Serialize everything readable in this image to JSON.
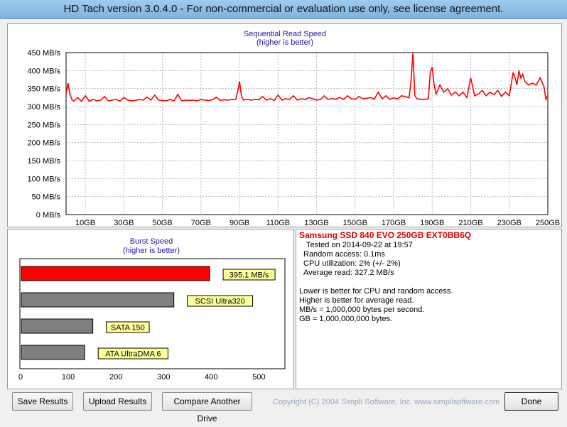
{
  "window": {
    "title": "HD Tach version 3.0.4.0  - For non-commercial or evaluation use only, see license agreement."
  },
  "colors": {
    "accent": "#ff0000",
    "title_blue": "#1a1aa6",
    "bar_gray": "#7f7f7f",
    "label_bg": "#ffff99"
  },
  "chart_data": [
    {
      "type": "line",
      "title": "Sequential Read Speed",
      "subtitle": "(higher is better)",
      "x_unit_labels": [
        "10GB",
        "30GB",
        "50GB",
        "70GB",
        "90GB",
        "110GB",
        "130GB",
        "150GB",
        "170GB",
        "190GB",
        "210GB",
        "230GB",
        "250GB"
      ],
      "y_tick_labels": [
        "450 MB/s",
        "400 MB/s",
        "350 MB/s",
        "300 MB/s",
        "250 MB/s",
        "200 MB/s",
        "150 MB/s",
        "100 MB/s",
        "50 MB/s",
        "0 MB/s"
      ],
      "xlim": [
        0,
        250
      ],
      "ylim": [
        0,
        450
      ],
      "grid": true,
      "series": [
        {
          "x": [
            0,
            1,
            2,
            3,
            4,
            6,
            8,
            10,
            12,
            14,
            16,
            18,
            20,
            22,
            24,
            26,
            28,
            30,
            32,
            34,
            36,
            38,
            40,
            42,
            44,
            46,
            48,
            50,
            52,
            54,
            56,
            58,
            60,
            62,
            64,
            66,
            68,
            70,
            72,
            74,
            76,
            78,
            80,
            82,
            84,
            86,
            88,
            89,
            90,
            91,
            92,
            94,
            96,
            98,
            100,
            102,
            104,
            106,
            108,
            110,
            112,
            114,
            116,
            118,
            120,
            122,
            124,
            126,
            128,
            130,
            132,
            134,
            136,
            138,
            140,
            142,
            144,
            146,
            148,
            150,
            152,
            154,
            156,
            158,
            160,
            162,
            164,
            166,
            168,
            170,
            172,
            174,
            176,
            178,
            179,
            180,
            181,
            182,
            184,
            186,
            188,
            189,
            190,
            191,
            192,
            194,
            196,
            198,
            200,
            202,
            204,
            206,
            208,
            210,
            212,
            214,
            216,
            218,
            220,
            222,
            224,
            226,
            228,
            230,
            232,
            233,
            234,
            235,
            236,
            237,
            238,
            240,
            242,
            244,
            246,
            248,
            249,
            250
          ],
          "values": [
            335,
            365,
            335,
            320,
            315,
            325,
            315,
            330,
            315,
            320,
            316,
            318,
            328,
            316,
            318,
            320,
            315,
            325,
            318,
            316,
            317,
            320,
            318,
            326,
            318,
            332,
            318,
            317,
            316,
            320,
            316,
            334,
            316,
            318,
            317,
            318,
            316,
            320,
            318,
            317,
            319,
            326,
            317,
            319,
            318,
            320,
            320,
            340,
            370,
            330,
            318,
            320,
            318,
            320,
            319,
            328,
            318,
            322,
            317,
            332,
            318,
            322,
            320,
            330,
            318,
            322,
            320,
            325,
            322,
            318,
            320,
            330,
            320,
            322,
            321,
            325,
            320,
            330,
            322,
            320,
            328,
            322,
            323,
            325,
            321,
            340,
            322,
            330,
            320,
            324,
            322,
            330,
            328,
            324,
            370,
            450,
            330,
            322,
            320,
            320,
            322,
            395,
            410,
            360,
            335,
            360,
            340,
            350,
            332,
            340,
            330,
            340,
            325,
            380,
            330,
            335,
            345,
            330,
            340,
            333,
            345,
            328,
            340,
            330,
            395,
            380,
            360,
            400,
            380,
            390,
            370,
            360,
            365,
            360,
            380,
            355,
            320,
            330
          ]
        }
      ]
    },
    {
      "type": "bar",
      "title": "Burst Speed",
      "subtitle": "(higher is better)",
      "categories": [
        "395.1 MB/s",
        "SCSI Ultra320",
        "SATA 150",
        "ATA UltraDMA 6"
      ],
      "values": [
        395.1,
        320,
        150,
        133
      ],
      "x_tick_labels": [
        "0",
        "100",
        "200",
        "300",
        "400",
        "500"
      ],
      "xlim": [
        0,
        550
      ],
      "bar_colors": [
        "#ff0000",
        "#7f7f7f",
        "#7f7f7f",
        "#7f7f7f"
      ]
    }
  ],
  "info": {
    "drive_name": "Samsung SSD 840 EVO 250GB EXT0BB6Q",
    "tested_on": "Tested on 2014-09-22 at 19:57",
    "random_access": "Random access: 0.1ms",
    "cpu_utilization": "CPU utilization: 2% (+/- 2%)",
    "average_read": "Average read: 327.2 MB/s",
    "notes": [
      "Lower is better for CPU and random access.",
      "Higher is better for average read.",
      "MB/s = 1,000,000 bytes per second.",
      "GB = 1,000,000,000 bytes."
    ]
  },
  "buttons": {
    "save": "Save Results",
    "upload": "Upload Results",
    "compare": "Compare Another Drive",
    "done": "Done"
  },
  "footer": {
    "copyright": "Copyright (C) 2004 Simpli Software, Inc. www.simplisoftware.com"
  }
}
